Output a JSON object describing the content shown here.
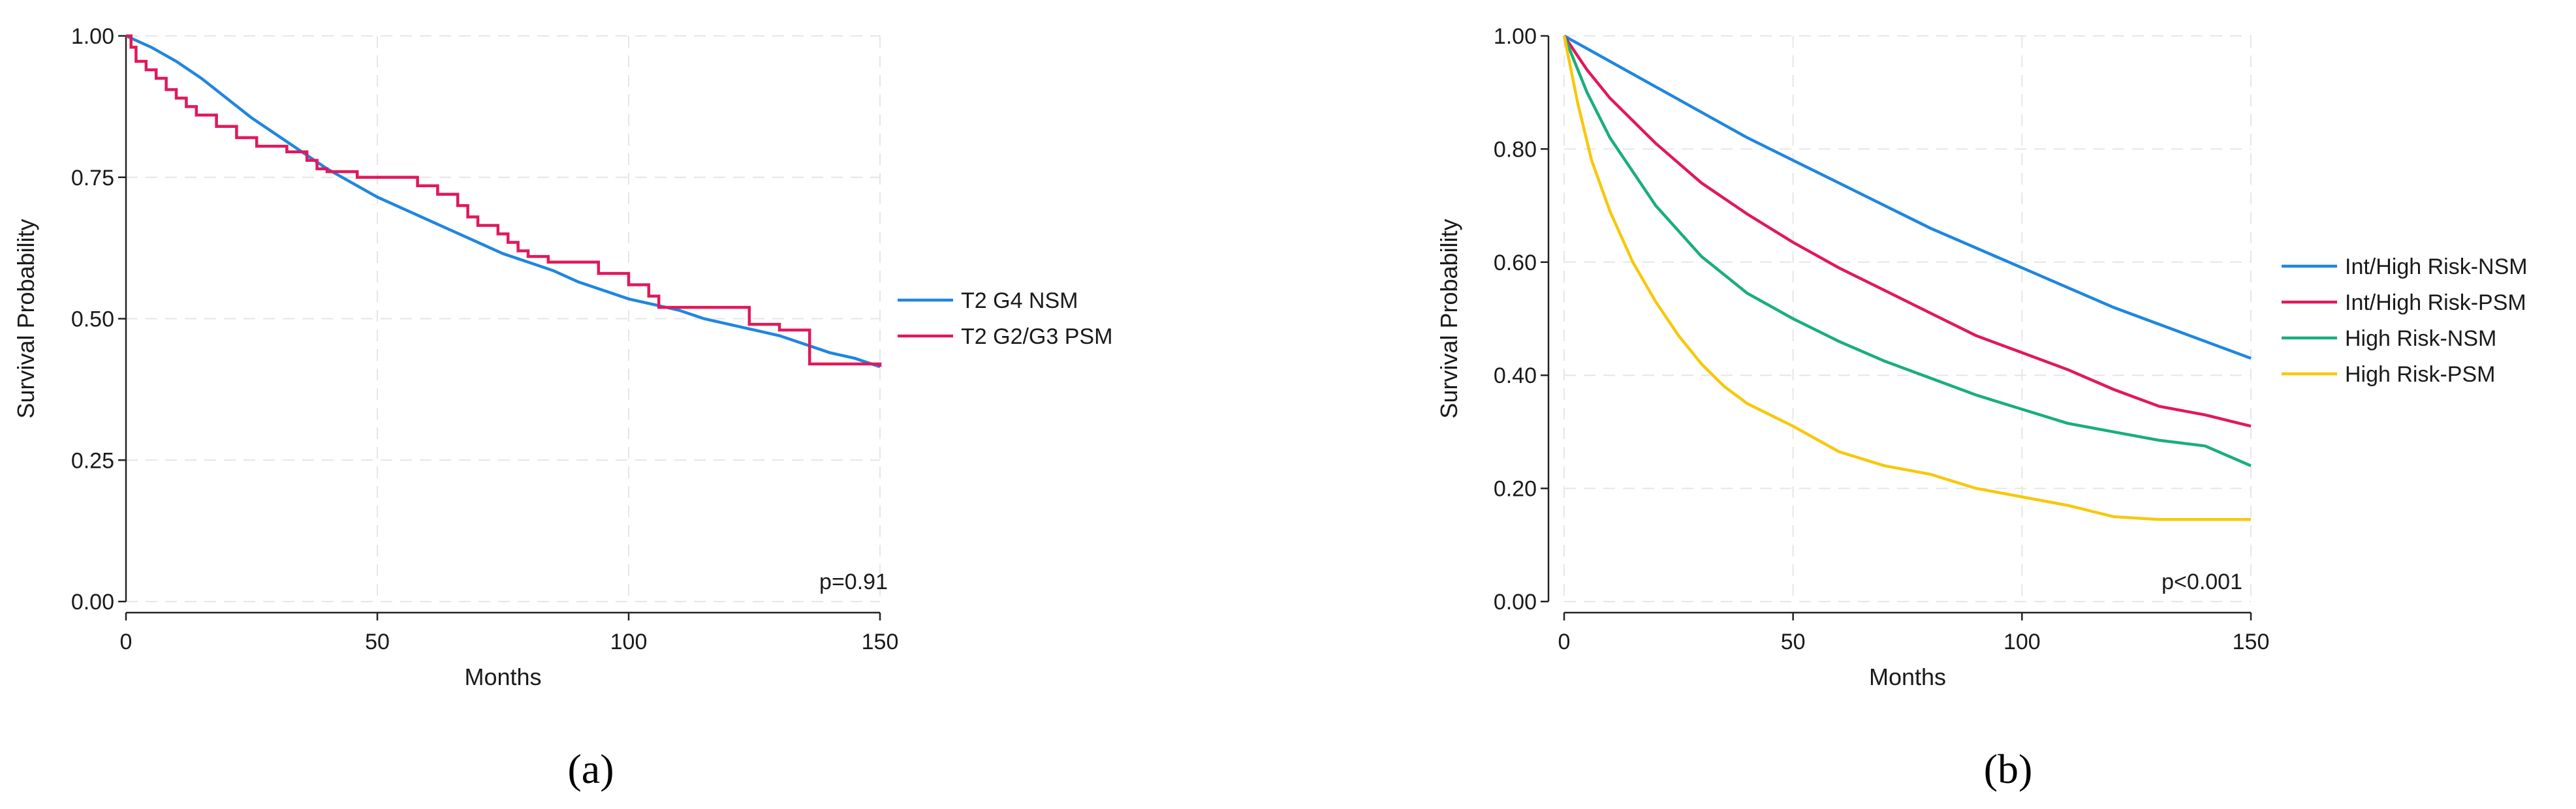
{
  "chart_data": [
    {
      "type": "line",
      "panel_label": "(a)",
      "xlabel": "Months",
      "ylabel": "Survival Probability",
      "xlim": [
        0,
        150
      ],
      "ylim": [
        0,
        1
      ],
      "xticks": [
        0,
        50,
        100,
        150
      ],
      "xtick_labels": [
        "0",
        "50",
        "100",
        "150"
      ],
      "yticks": [
        0,
        0.25,
        0.5,
        0.75,
        1
      ],
      "ytick_labels": [
        "0.00",
        "0.25",
        "0.50",
        "0.75",
        "1.00"
      ],
      "grid": true,
      "legend_position": "right",
      "annotation": "p=0.91",
      "series": [
        {
          "name": "T2 G4 NSM",
          "color": "#1f86e0",
          "step": false,
          "x": [
            0,
            5,
            10,
            15,
            20,
            25,
            30,
            35,
            40,
            45,
            50,
            55,
            60,
            65,
            70,
            75,
            80,
            85,
            90,
            95,
            100,
            105,
            110,
            115,
            120,
            125,
            130,
            135,
            140,
            145,
            150
          ],
          "y": [
            1.0,
            0.98,
            0.955,
            0.925,
            0.89,
            0.855,
            0.825,
            0.795,
            0.765,
            0.74,
            0.715,
            0.695,
            0.675,
            0.655,
            0.635,
            0.615,
            0.6,
            0.585,
            0.565,
            0.55,
            0.535,
            0.525,
            0.515,
            0.5,
            0.49,
            0.48,
            0.47,
            0.455,
            0.44,
            0.43,
            0.415
          ]
        },
        {
          "name": "T2 G2/G3 PSM",
          "color": "#e0195a",
          "step": true,
          "x": [
            0,
            1,
            2,
            4,
            6,
            8,
            10,
            12,
            14,
            18,
            22,
            26,
            32,
            36,
            38,
            40,
            46,
            50,
            58,
            62,
            66,
            68,
            70,
            74,
            76,
            78,
            80,
            84,
            88,
            94,
            100,
            104,
            106,
            110,
            116,
            124,
            128,
            130,
            136,
            150
          ],
          "y": [
            1.0,
            0.98,
            0.955,
            0.94,
            0.925,
            0.905,
            0.89,
            0.875,
            0.86,
            0.84,
            0.82,
            0.805,
            0.795,
            0.78,
            0.765,
            0.76,
            0.75,
            0.75,
            0.735,
            0.72,
            0.7,
            0.68,
            0.665,
            0.65,
            0.635,
            0.62,
            0.61,
            0.6,
            0.6,
            0.58,
            0.56,
            0.54,
            0.52,
            0.52,
            0.52,
            0.49,
            0.49,
            0.48,
            0.42,
            0.415
          ]
        }
      ]
    },
    {
      "type": "line",
      "panel_label": "(b)",
      "xlabel": "Months",
      "ylabel": "Survival Probability",
      "xlim": [
        0,
        150
      ],
      "ylim": [
        0,
        1
      ],
      "xticks": [
        0,
        50,
        100,
        150
      ],
      "xtick_labels": [
        "0",
        "50",
        "100",
        "150"
      ],
      "yticks": [
        0,
        0.2,
        0.4,
        0.6,
        0.8,
        1
      ],
      "ytick_labels": [
        "0.00",
        "0.20",
        "0.40",
        "0.60",
        "0.80",
        "1.00"
      ],
      "grid": true,
      "legend_position": "right",
      "annotation": "p<0.001",
      "series": [
        {
          "name": "Int/High Risk-NSM",
          "color": "#1f86e0",
          "step": false,
          "x": [
            0,
            10,
            20,
            30,
            40,
            50,
            60,
            70,
            80,
            90,
            100,
            110,
            120,
            130,
            140,
            150
          ],
          "y": [
            1.0,
            0.955,
            0.91,
            0.865,
            0.82,
            0.78,
            0.74,
            0.7,
            0.66,
            0.625,
            0.59,
            0.555,
            0.52,
            0.49,
            0.46,
            0.43
          ]
        },
        {
          "name": "Int/High Risk-PSM",
          "color": "#e0195a",
          "step": false,
          "x": [
            0,
            5,
            10,
            20,
            30,
            40,
            50,
            60,
            70,
            80,
            90,
            100,
            110,
            120,
            130,
            140,
            150
          ],
          "y": [
            1.0,
            0.94,
            0.89,
            0.81,
            0.74,
            0.685,
            0.635,
            0.59,
            0.55,
            0.51,
            0.47,
            0.44,
            0.41,
            0.375,
            0.345,
            0.33,
            0.31
          ]
        },
        {
          "name": "High Risk-NSM",
          "color": "#1aae7a",
          "step": false,
          "x": [
            0,
            5,
            10,
            20,
            30,
            40,
            50,
            60,
            70,
            80,
            90,
            100,
            110,
            120,
            130,
            140,
            150
          ],
          "y": [
            1.0,
            0.9,
            0.82,
            0.7,
            0.61,
            0.545,
            0.5,
            0.46,
            0.425,
            0.395,
            0.365,
            0.34,
            0.315,
            0.3,
            0.285,
            0.275,
            0.24
          ]
        },
        {
          "name": "High Risk-PSM",
          "color": "#f7c80c",
          "step": false,
          "x": [
            0,
            3,
            6,
            10,
            15,
            20,
            25,
            30,
            35,
            40,
            50,
            60,
            70,
            80,
            90,
            100,
            110,
            120,
            130,
            140,
            150
          ],
          "y": [
            1.0,
            0.88,
            0.78,
            0.69,
            0.6,
            0.53,
            0.47,
            0.42,
            0.38,
            0.35,
            0.31,
            0.265,
            0.24,
            0.225,
            0.2,
            0.185,
            0.17,
            0.15,
            0.145,
            0.145,
            0.145
          ]
        }
      ]
    }
  ]
}
